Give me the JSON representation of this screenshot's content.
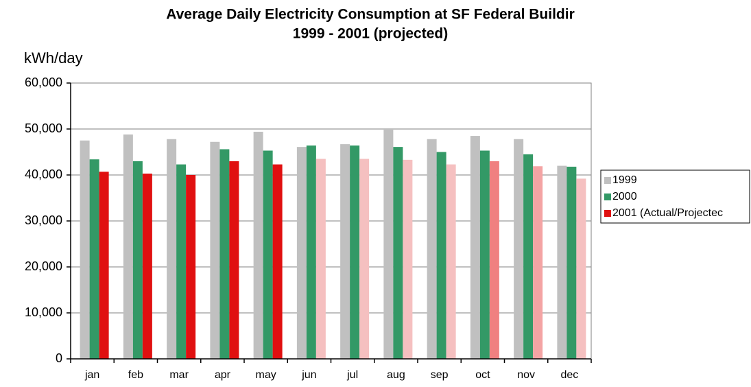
{
  "chart_data": {
    "type": "bar",
    "title": "Average Daily Electricity Consumption at SF Federal Buildir",
    "subtitle": "1999 - 2001 (projected)",
    "y_label": "kWh/day",
    "categories": [
      "jan",
      "feb",
      "mar",
      "apr",
      "may",
      "jun",
      "jul",
      "aug",
      "sep",
      "oct",
      "nov",
      "dec"
    ],
    "series": [
      {
        "name": "1999",
        "color": "#c0c0c0",
        "values": [
          47500,
          48800,
          47800,
          47200,
          49400,
          46100,
          46700,
          50000,
          47800,
          48500,
          47800,
          42000
        ]
      },
      {
        "name": "2000",
        "color": "#339966",
        "values": [
          43400,
          43000,
          42300,
          45600,
          45300,
          46400,
          46400,
          46100,
          45000,
          45300,
          44500,
          41800
        ]
      },
      {
        "name": "2001 (Actual/Projectec",
        "color": "#e01010",
        "colors": [
          "#e01010",
          "#e01010",
          "#e01010",
          "#e01010",
          "#e01010",
          "#f5c0c0",
          "#f5c0c0",
          "#f5c0c0",
          "#f5c0c0",
          "#f08080",
          "#f4a4a4",
          "#f5c0c0"
        ],
        "values": [
          40700,
          40300,
          40000,
          43000,
          42300,
          43500,
          43500,
          43300,
          42300,
          43000,
          41900,
          39200
        ]
      }
    ],
    "ylim": [
      0,
      60000
    ],
    "yticks": [
      0,
      {
        "value": 10000,
        "label": "10,000"
      },
      {
        "value": 20000,
        "label": "20,000"
      },
      {
        "value": 30000,
        "label": "30,000"
      },
      {
        "value": 40000,
        "label": "40,000"
      },
      {
        "value": 50000,
        "label": "50,000"
      },
      {
        "value": 60000,
        "label": "60,000"
      }
    ],
    "grid": true,
    "legend": "right"
  }
}
